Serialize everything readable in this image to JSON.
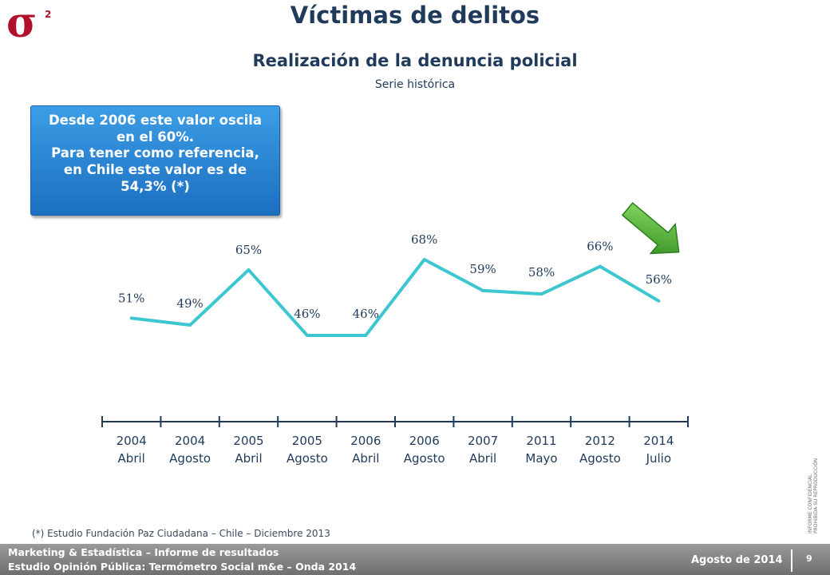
{
  "brand": {
    "logo_text": "σ",
    "logo_superscript": "2",
    "logo_color": "#b0102a"
  },
  "header": {
    "title": "Víctimas de delitos",
    "subtitle": "Realización de la denuncia policial",
    "subsubtitle": "Serie histórica"
  },
  "callout": {
    "lines": [
      "Desde 2006 este valor oscila",
      "en el 60%.",
      "Para tener como referencia,",
      "en Chile este valor es de",
      "54,3% (*)"
    ]
  },
  "chart_data": {
    "type": "line",
    "title": "Realización de la denuncia policial",
    "subtitle": "Serie histórica",
    "categories": [
      [
        "2004",
        "Abril"
      ],
      [
        "2004",
        "Agosto"
      ],
      [
        "2005",
        "Abril"
      ],
      [
        "2005",
        "Agosto"
      ],
      [
        "2006",
        "Abril"
      ],
      [
        "2006",
        "Agosto"
      ],
      [
        "2007",
        "Abril"
      ],
      [
        "2011",
        "Mayo"
      ],
      [
        "2012",
        "Agosto"
      ],
      [
        "2014",
        "Julio"
      ]
    ],
    "values": [
      51,
      49,
      65,
      46,
      46,
      68,
      59,
      58,
      66,
      56
    ],
    "data_labels": [
      "51%",
      "49%",
      "65%",
      "46%",
      "46%",
      "68%",
      "59%",
      "58%",
      "66%",
      "56%"
    ],
    "ylim": [
      40,
      72
    ],
    "grid": false,
    "line_color": "#3cc6d0",
    "trend_arrow": "down",
    "arrow_color": "#3faa2a"
  },
  "footnote": "(*) Estudio Fundación Paz Ciudadana – Chile – Diciembre 2013",
  "side_note": {
    "line1": "INFORME CONFIDENCIAL",
    "line2": "PROHIBIDA SU REPRODUCCIÓN"
  },
  "footer": {
    "line1": "Marketing & Estadística – Informe de resultados",
    "line2": "Estudio Opinión Pública: Termómetro Social m&e – Onda 2014",
    "date": "Agosto de 2014",
    "page": "9"
  }
}
